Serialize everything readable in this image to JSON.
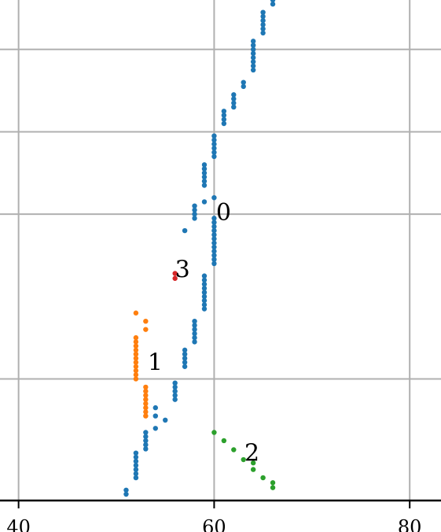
{
  "chart_data": {
    "type": "scatter",
    "title": "",
    "xlabel": "",
    "ylabel": "",
    "xlim": [
      38.1,
      83.2
    ],
    "ylim": [
      0,
      6
    ],
    "x_ticks": [
      {
        "value": 40,
        "label": "40"
      },
      {
        "value": 60,
        "label": "60"
      },
      {
        "value": 80,
        "label": "80"
      }
    ],
    "y_gridlines": [
      1.4,
      3.4,
      4.4,
      5.4
    ],
    "grid": true,
    "legend": "none",
    "series": [
      {
        "color": "#1f77b4",
        "label": {
          "text": "0",
          "x": 60.2,
          "y": 3.42
        },
        "points": [
          [
            51,
            0.0
          ],
          [
            51,
            0.05
          ],
          [
            52,
            0.2
          ],
          [
            52,
            0.25
          ],
          [
            52,
            0.3
          ],
          [
            52,
            0.35
          ],
          [
            52,
            0.4
          ],
          [
            52,
            0.45
          ],
          [
            52,
            0.5
          ],
          [
            53,
            0.55
          ],
          [
            53,
            0.6
          ],
          [
            53,
            0.65
          ],
          [
            53,
            0.7
          ],
          [
            53,
            0.75
          ],
          [
            54,
            0.8
          ],
          [
            55,
            0.9
          ],
          [
            54,
            0.95
          ],
          [
            54,
            1.05
          ],
          [
            56,
            1.15
          ],
          [
            56,
            1.2
          ],
          [
            56,
            1.25
          ],
          [
            56,
            1.3
          ],
          [
            56,
            1.35
          ],
          [
            57,
            1.55
          ],
          [
            57,
            1.6
          ],
          [
            57,
            1.65
          ],
          [
            57,
            1.7
          ],
          [
            57,
            1.75
          ],
          [
            58,
            1.85
          ],
          [
            58,
            1.9
          ],
          [
            58,
            1.95
          ],
          [
            58,
            2.0
          ],
          [
            58,
            2.05
          ],
          [
            58,
            2.1
          ],
          [
            59,
            2.25
          ],
          [
            59,
            2.3
          ],
          [
            59,
            2.35
          ],
          [
            59,
            2.4
          ],
          [
            59,
            2.45
          ],
          [
            59,
            2.5
          ],
          [
            59,
            2.55
          ],
          [
            59,
            2.6
          ],
          [
            59,
            2.65
          ],
          [
            60,
            2.8
          ],
          [
            60,
            2.85
          ],
          [
            60,
            2.9
          ],
          [
            60,
            2.95
          ],
          [
            60,
            3.0
          ],
          [
            60,
            3.05
          ],
          [
            60,
            3.1
          ],
          [
            60,
            3.15
          ],
          [
            60,
            3.2
          ],
          [
            60,
            3.25
          ],
          [
            60,
            3.3
          ],
          [
            60,
            3.35
          ],
          [
            57,
            3.2
          ],
          [
            58,
            3.35
          ],
          [
            58,
            3.4
          ],
          [
            58,
            3.45
          ],
          [
            58,
            3.5
          ],
          [
            59,
            3.55
          ],
          [
            60,
            3.6
          ],
          [
            59,
            3.75
          ],
          [
            59,
            3.8
          ],
          [
            59,
            3.85
          ],
          [
            59,
            3.9
          ],
          [
            59,
            3.95
          ],
          [
            59,
            4.0
          ],
          [
            60,
            4.1
          ],
          [
            60,
            4.15
          ],
          [
            60,
            4.2
          ],
          [
            60,
            4.25
          ],
          [
            60,
            4.3
          ],
          [
            60,
            4.35
          ],
          [
            61,
            4.5
          ],
          [
            61,
            4.55
          ],
          [
            61,
            4.6
          ],
          [
            61,
            4.65
          ],
          [
            62,
            4.7
          ],
          [
            62,
            4.75
          ],
          [
            62,
            4.8
          ],
          [
            62,
            4.85
          ],
          [
            63,
            4.95
          ],
          [
            63,
            5.0
          ],
          [
            64,
            5.15
          ],
          [
            64,
            5.2
          ],
          [
            64,
            5.25
          ],
          [
            64,
            5.3
          ],
          [
            64,
            5.35
          ],
          [
            64,
            5.4
          ],
          [
            64,
            5.45
          ],
          [
            64,
            5.5
          ],
          [
            65,
            5.6
          ],
          [
            65,
            5.65
          ],
          [
            65,
            5.7
          ],
          [
            65,
            5.75
          ],
          [
            65,
            5.8
          ],
          [
            65,
            5.85
          ],
          [
            66,
            5.95
          ],
          [
            66,
            6.0
          ]
        ]
      },
      {
        "color": "#ff7f0e",
        "label": {
          "text": "1",
          "x": 53.2,
          "y": 1.6
        },
        "points": [
          [
            52,
            2.2
          ],
          [
            53,
            2.1
          ],
          [
            53,
            2.0
          ],
          [
            52,
            1.9
          ],
          [
            52,
            1.85
          ],
          [
            52,
            1.8
          ],
          [
            52,
            1.75
          ],
          [
            52,
            1.7
          ],
          [
            52,
            1.65
          ],
          [
            52,
            1.6
          ],
          [
            52,
            1.55
          ],
          [
            52,
            1.5
          ],
          [
            52,
            1.45
          ],
          [
            52,
            1.4
          ],
          [
            53,
            1.3
          ],
          [
            53,
            1.25
          ],
          [
            53,
            1.2
          ],
          [
            53,
            1.15
          ],
          [
            53,
            1.1
          ],
          [
            53,
            1.05
          ],
          [
            53,
            1.0
          ],
          [
            53,
            0.95
          ]
        ]
      },
      {
        "color": "#2ca02c",
        "label": {
          "text": "2",
          "x": 63.1,
          "y": 0.5
        },
        "points": [
          [
            60,
            0.75
          ],
          [
            61,
            0.65
          ],
          [
            62,
            0.54
          ],
          [
            63,
            0.42
          ],
          [
            64,
            0.38
          ],
          [
            64,
            0.3
          ],
          [
            65,
            0.2
          ],
          [
            66,
            0.14
          ],
          [
            66,
            0.08
          ]
        ]
      },
      {
        "color": "#d62728",
        "label": {
          "text": "3",
          "x": 56.0,
          "y": 2.73
        },
        "points": [
          [
            56,
            2.62
          ],
          [
            56,
            2.68
          ]
        ]
      }
    ]
  }
}
